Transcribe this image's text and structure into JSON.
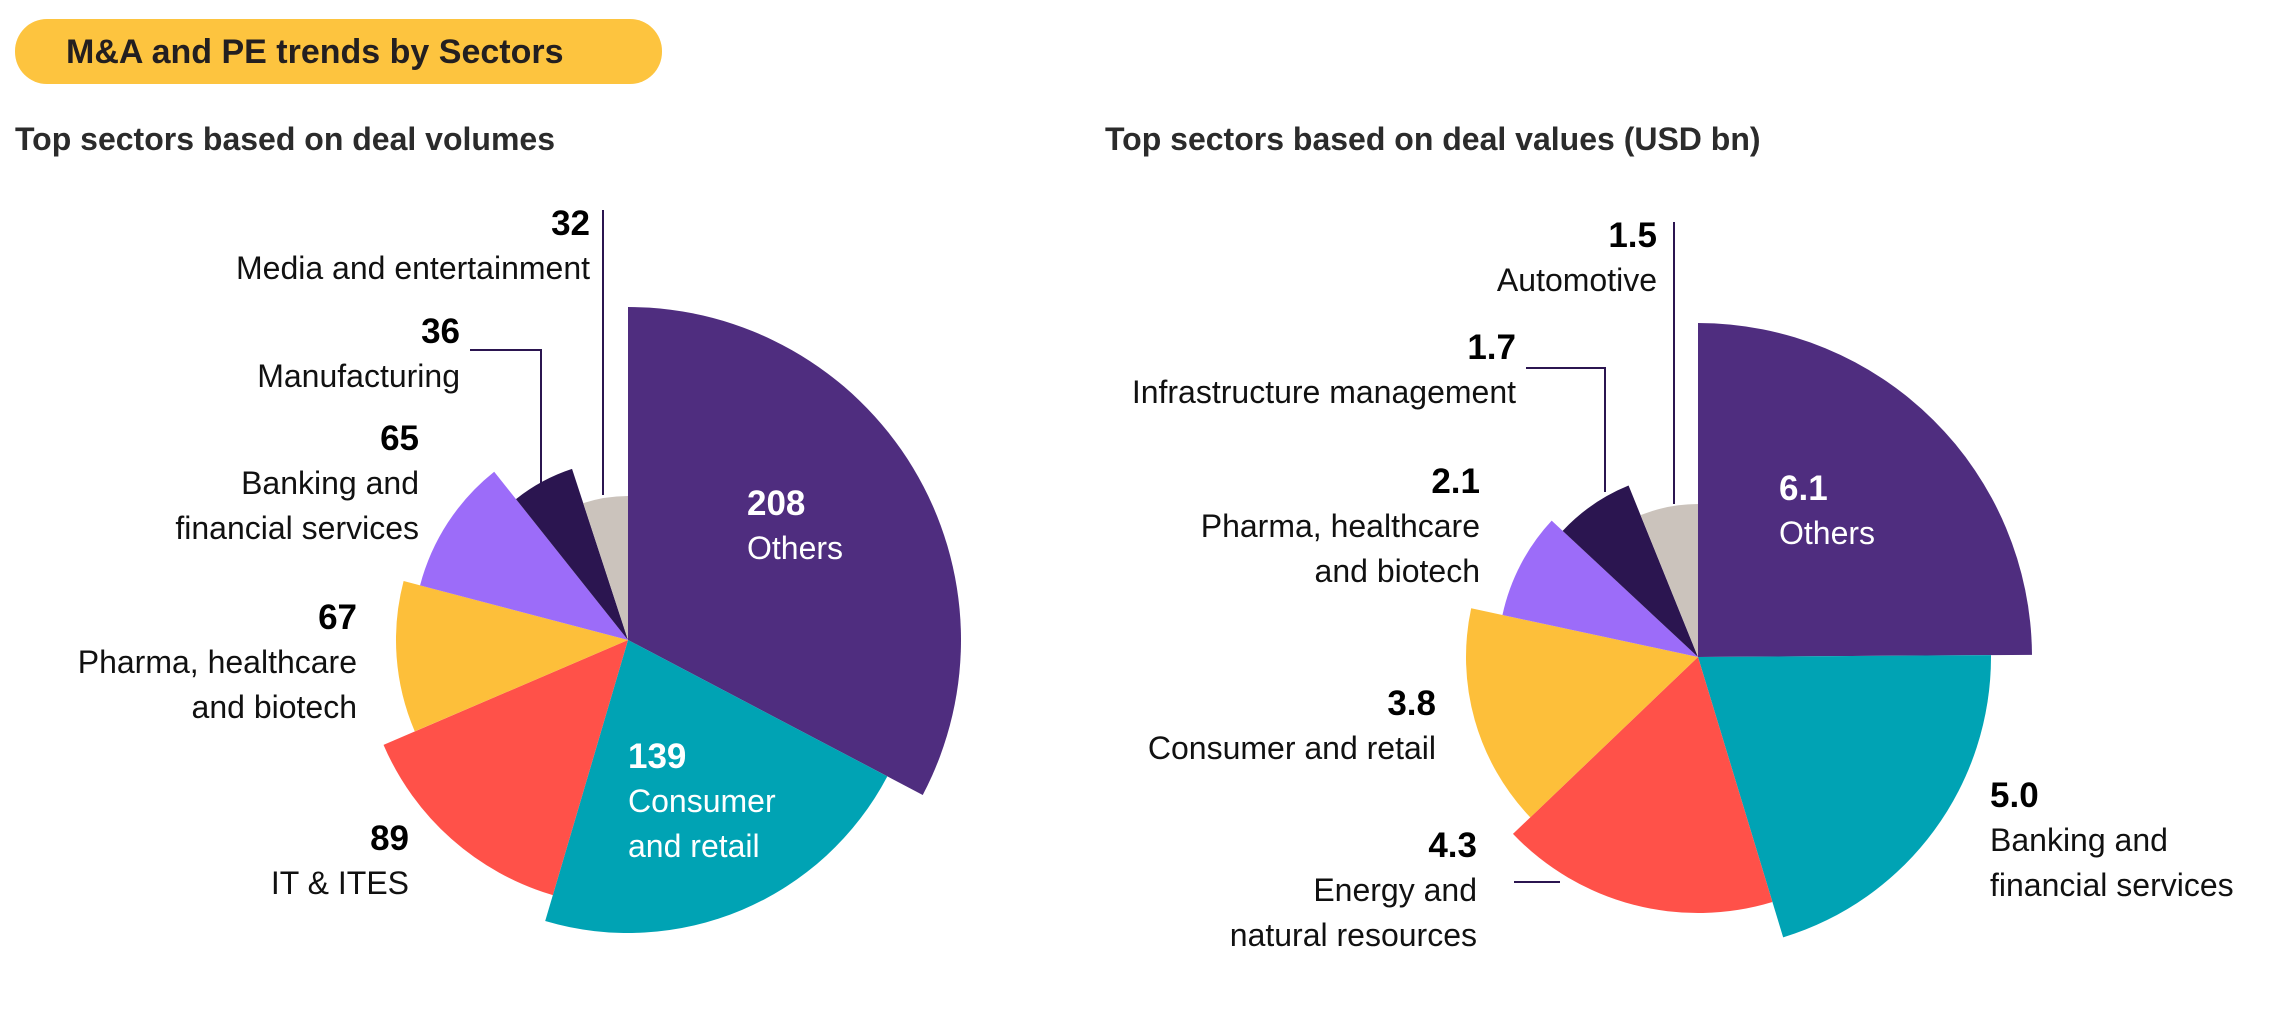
{
  "header": {
    "title": "M&A and PE trends by Sectors",
    "pill_color": "#fdc43f"
  },
  "chart_data": [
    {
      "type": "pie",
      "title": "Top sectors based on deal volumes",
      "categories": [
        "Others",
        "Consumer and retail",
        "IT & ITES",
        "Pharma, healthcare and biotech",
        "Banking and financial services",
        "Manufacturing",
        "Media and entertainment"
      ],
      "values": [
        208,
        139,
        89,
        67,
        65,
        36,
        32
      ],
      "value_labels": [
        "208",
        "139",
        "89",
        "67",
        "65",
        "36",
        "32"
      ],
      "label_lines": [
        [
          "Others"
        ],
        [
          "Consumer",
          "and retail"
        ],
        [
          "IT & ITES"
        ],
        [
          "Pharma, healthcare",
          "and biotech"
        ],
        [
          "Banking and",
          "financial services"
        ],
        [
          "Manufacturing"
        ],
        [
          "Media and entertainment"
        ]
      ],
      "colors": [
        "#4f2d7f",
        "#00a3b4",
        "#ff5149",
        "#fdbf3a",
        "#9c6cf9",
        "#2b1550",
        "#cbc3bc"
      ]
    },
    {
      "type": "pie",
      "title": "Top sectors based on deal values (USD bn)",
      "categories": [
        "Others",
        "Banking and financial services",
        "Energy and natural resources",
        "Consumer and retail",
        "Pharma, healthcare and biotech",
        "Infrastructure management",
        "Automotive"
      ],
      "values": [
        6.1,
        5.0,
        4.3,
        3.8,
        2.1,
        1.7,
        1.5
      ],
      "value_labels": [
        "6.1",
        "5.0",
        "4.3",
        "3.8",
        "2.1",
        "1.7",
        "1.5"
      ],
      "label_lines": [
        [
          "Others"
        ],
        [
          "Banking and",
          "financial services"
        ],
        [
          "Energy and",
          "natural resources"
        ],
        [
          "Consumer and retail"
        ],
        [
          "Pharma, healthcare",
          "and biotech"
        ],
        [
          "Infrastructure management"
        ],
        [
          "Automotive"
        ]
      ],
      "colors": [
        "#4f2d7f",
        "#00a3b4",
        "#ff5149",
        "#fdbf3a",
        "#9c6cf9",
        "#2b1550",
        "#cbc3bc"
      ]
    }
  ]
}
